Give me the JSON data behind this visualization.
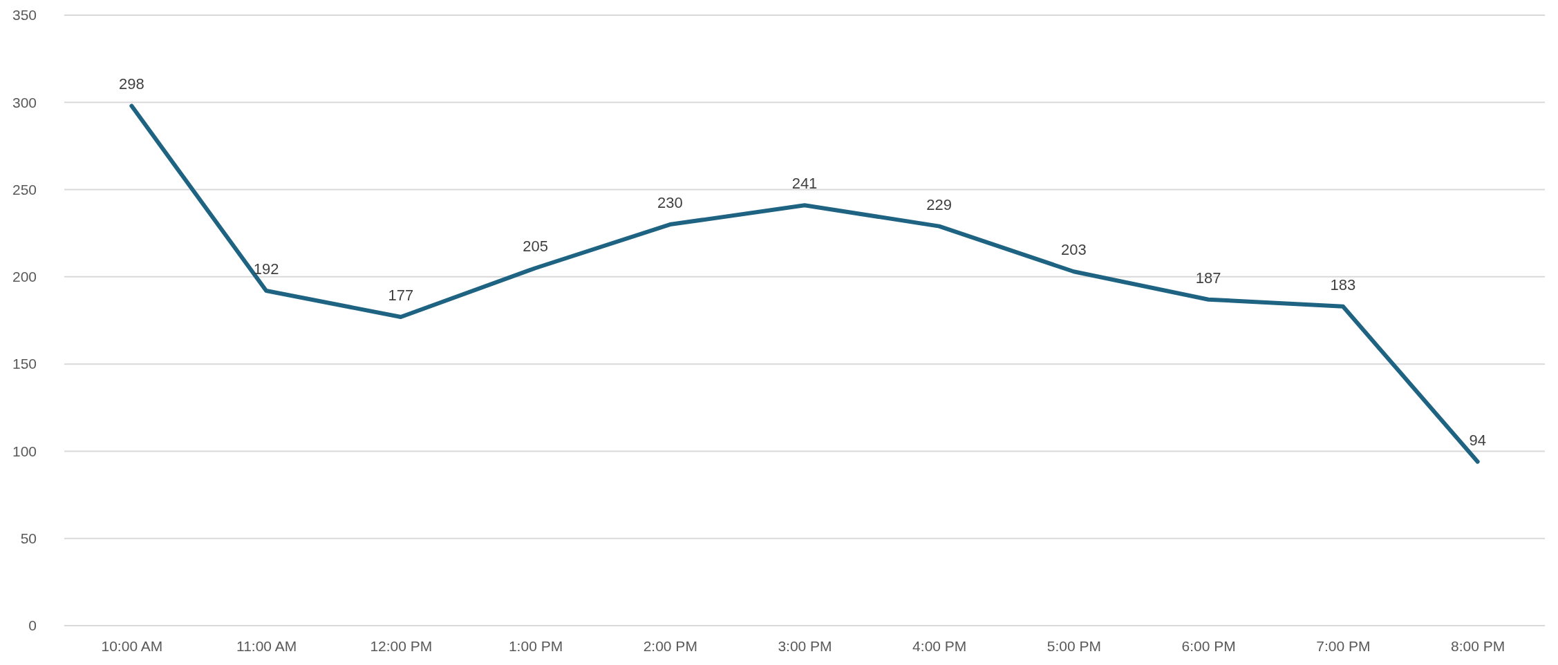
{
  "chart_data": {
    "type": "line",
    "categories": [
      "10:00 AM",
      "11:00 AM",
      "12:00 PM",
      "1:00 PM",
      "2:00 PM",
      "3:00 PM",
      "4:00 PM",
      "5:00 PM",
      "6:00 PM",
      "7:00 PM",
      "8:00 PM"
    ],
    "series": [
      {
        "color": "#1f6383",
        "values": [
          298,
          192,
          177,
          205,
          230,
          241,
          229,
          203,
          187,
          183,
          94
        ]
      }
    ],
    "ylim": [
      0,
      350
    ],
    "yticks": [
      0,
      50,
      100,
      150,
      200,
      250,
      300,
      350
    ],
    "grid": "y",
    "data_labels": true,
    "marker": "none",
    "line_style": "solid"
  }
}
